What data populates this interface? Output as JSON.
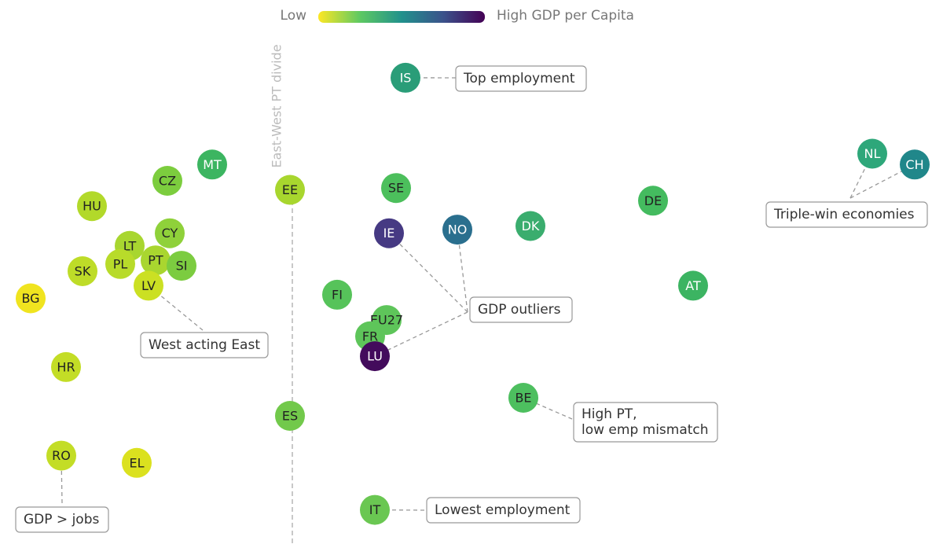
{
  "chart_data": {
    "type": "scatter",
    "colorbar_low": "Low",
    "colorbar_high": "High GDP per Capita",
    "categories": [
      "IS",
      "MT",
      "CZ",
      "EE",
      "SE",
      "HU",
      "DE",
      "NL",
      "CH",
      "CY",
      "IE",
      "NO",
      "DK",
      "LT",
      "PL",
      "PT",
      "SI",
      "SK",
      "LV",
      "BG",
      "FI",
      "AT",
      "EU27",
      "FR",
      "LU",
      "HR",
      "ES",
      "BE",
      "RO",
      "EL",
      "IT"
    ],
    "x": [
      17.2,
      9.0,
      7.1,
      12.3,
      16.8,
      3.9,
      27.7,
      37.0,
      38.8,
      7.2,
      16.5,
      19.4,
      22.5,
      5.5,
      5.1,
      6.6,
      7.7,
      3.5,
      6.3,
      1.3,
      14.3,
      29.4,
      16.4,
      15.7,
      15.9,
      2.8,
      12.3,
      22.2,
      2.6,
      5.8,
      15.9
    ],
    "y": [
      84.7,
      79.9,
      79.0,
      78.5,
      78.6,
      77.6,
      77.9,
      80.5,
      79.9,
      76.1,
      76.1,
      76.3,
      76.5,
      75.4,
      74.4,
      74.6,
      74.3,
      74.0,
      73.2,
      72.5,
      72.7,
      73.2,
      71.3,
      70.4,
      69.3,
      68.7,
      66.0,
      67.0,
      63.8,
      63.4,
      60.8
    ],
    "colors": [
      "#2a9d78",
      "#3cb561",
      "#7ccd3e",
      "#a8d62e",
      "#4cbf5c",
      "#b2d92a",
      "#44bb5f",
      "#2ea77a",
      "#20878a",
      "#8fd13a",
      "#463a83",
      "#2a6f8e",
      "#3aad6e",
      "#a8d630",
      "#b8db2a",
      "#a9d62f",
      "#7ccc40",
      "#bedc28",
      "#cbe023",
      "#f0e41f",
      "#56c35a",
      "#3cb462",
      "#5ec55a",
      "#5ec55a",
      "#430b5c",
      "#c3dd26",
      "#72c94b",
      "#4dbf5f",
      "#c3dd26",
      "#dbe11f",
      "#6ac752"
    ],
    "xlim": [
      0,
      40
    ],
    "ylim": [
      59,
      89
    ],
    "divider": {
      "x": 12.4,
      "label": "East-West PT divide"
    },
    "annotations": [
      {
        "lines": [
          "Top employment"
        ]
      },
      {
        "lines": [
          "Triple-win economies"
        ]
      },
      {
        "lines": [
          "GDP outliers"
        ]
      },
      {
        "lines": [
          "West acting East"
        ]
      },
      {
        "lines": [
          "High PT,",
          "low emp mismatch"
        ]
      },
      {
        "lines": [
          "Lowest employment"
        ]
      },
      {
        "lines": [
          "GDP > jobs"
        ]
      }
    ]
  }
}
